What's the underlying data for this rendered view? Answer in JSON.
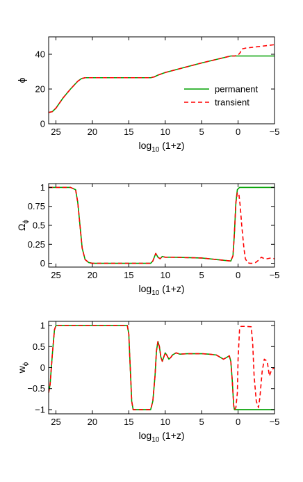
{
  "chart_data": [
    {
      "type": "line",
      "id": "phi",
      "xlabel": "log10 (1+z)",
      "ylabel": "ϕ",
      "xlim": [
        26,
        -5
      ],
      "ylim": [
        0,
        50
      ],
      "xticks": [
        25,
        20,
        15,
        10,
        5,
        0,
        -5
      ],
      "xtick_labels": [
        "25",
        "20",
        "15",
        "10",
        "5",
        "0",
        "−5"
      ],
      "yticks": [
        0,
        20,
        40
      ],
      "ytick_labels": [
        "0",
        "20",
        "40"
      ],
      "legend": {
        "position": "lower-right",
        "entries": [
          "permanent",
          "transient"
        ]
      },
      "series": [
        {
          "name": "permanent",
          "color": "#00a000",
          "dash": "solid",
          "x": [
            26,
            25.5,
            25,
            24,
            23,
            22,
            21.5,
            21,
            20,
            15,
            12,
            11.5,
            11,
            10,
            5,
            1,
            0.5,
            0,
            -1,
            -5
          ],
          "y": [
            6.5,
            7,
            9,
            15,
            20,
            24.5,
            26,
            26.5,
            26.5,
            26.5,
            26.5,
            27,
            28,
            29.5,
            35,
            39,
            39,
            39,
            39,
            39
          ]
        },
        {
          "name": "transient",
          "color": "#ff0000",
          "dash": "dashed",
          "x": [
            26,
            25.5,
            25,
            24,
            23,
            22,
            21.5,
            21,
            20,
            15,
            12,
            11.5,
            11,
            10,
            5,
            1,
            0.5,
            0,
            -0.3,
            -0.5,
            -1,
            -2,
            -3,
            -4,
            -5
          ],
          "y": [
            6.5,
            7,
            9,
            15,
            20,
            24.5,
            26,
            26.5,
            26.5,
            26.5,
            26.5,
            27,
            28,
            29.5,
            35,
            39,
            39,
            39.5,
            41,
            43,
            43.5,
            44,
            44.5,
            45,
            45.5
          ]
        }
      ]
    },
    {
      "type": "line",
      "id": "omega",
      "xlabel": "log10 (1+z)",
      "ylabel": "Ωϕ",
      "xlim": [
        26,
        -5
      ],
      "ylim": [
        -0.05,
        1.05
      ],
      "xticks": [
        25,
        20,
        15,
        10,
        5,
        0,
        -5
      ],
      "xtick_labels": [
        "25",
        "20",
        "15",
        "10",
        "5",
        "0",
        "−5"
      ],
      "yticks": [
        0,
        0.25,
        0.5,
        0.75,
        1
      ],
      "ytick_labels": [
        "0",
        "0.25",
        "0.5",
        "0.75",
        "1"
      ],
      "series": [
        {
          "name": "permanent",
          "color": "#00a000",
          "dash": "solid",
          "x": [
            26,
            23,
            22.3,
            22,
            21.7,
            21.4,
            21,
            20.5,
            20,
            15,
            12,
            11.7,
            11.3,
            11,
            10.7,
            10.4,
            10,
            9,
            5,
            1,
            0.7,
            0.5,
            0.3,
            0.1,
            -0.2,
            -0.5,
            -1,
            -5
          ],
          "y": [
            1,
            1,
            0.97,
            0.8,
            0.5,
            0.2,
            0.05,
            0.01,
            0,
            0,
            0,
            0.03,
            0.13,
            0.08,
            0.06,
            0.09,
            0.08,
            0.08,
            0.07,
            0.03,
            0.1,
            0.4,
            0.8,
            0.97,
            1,
            1,
            1,
            1
          ]
        },
        {
          "name": "transient",
          "color": "#ff0000",
          "dash": "dashed",
          "x": [
            26,
            23,
            22.3,
            22,
            21.7,
            21.4,
            21,
            20.5,
            20,
            15,
            12,
            11.7,
            11.3,
            11,
            10.7,
            10.4,
            10,
            9,
            5,
            1,
            0.7,
            0.5,
            0.3,
            0.1,
            -0.1,
            -0.3,
            -0.5,
            -0.8,
            -1,
            -1.3,
            -1.6,
            -2,
            -2.4,
            -2.8,
            -3.2,
            -3.6,
            -4,
            -4.5,
            -5
          ],
          "y": [
            1,
            1,
            0.97,
            0.8,
            0.5,
            0.2,
            0.05,
            0.01,
            0,
            0,
            0,
            0.03,
            0.13,
            0.08,
            0.06,
            0.09,
            0.08,
            0.08,
            0.07,
            0.03,
            0.1,
            0.4,
            0.8,
            0.93,
            0.92,
            0.75,
            0.5,
            0.2,
            0.06,
            0.01,
            0.0,
            0.0,
            0.01,
            0.04,
            0.08,
            0.06,
            0.06,
            0.07,
            0.06
          ]
        }
      ]
    },
    {
      "type": "line",
      "id": "w",
      "xlabel": "log10 (1+z)",
      "ylabel": "wϕ",
      "xlim": [
        26,
        -5
      ],
      "ylim": [
        -1.1,
        1.1
      ],
      "xticks": [
        25,
        20,
        15,
        10,
        5,
        0,
        -5
      ],
      "xtick_labels": [
        "25",
        "20",
        "15",
        "10",
        "5",
        "0",
        "−5"
      ],
      "yticks": [
        -1,
        -0.5,
        0,
        0.5,
        1
      ],
      "ytick_labels": [
        "−1",
        "−0.5",
        "0",
        "0.5",
        "1"
      ],
      "series": [
        {
          "name": "permanent",
          "color": "#00a000",
          "dash": "solid",
          "x": [
            26,
            25.8,
            25.5,
            25.2,
            25,
            24.5,
            20,
            15.2,
            15,
            14.8,
            14.6,
            14.4,
            14,
            13,
            12,
            11.7,
            11.4,
            11.2,
            11,
            10.8,
            10.6,
            10.4,
            10.2,
            10,
            9.8,
            9.5,
            9.2,
            9,
            8.5,
            8,
            7,
            6,
            5,
            4,
            3,
            2,
            1.5,
            1.2,
            1,
            0.8,
            0.6,
            0.5,
            0.2,
            0,
            -5
          ],
          "y": [
            -0.6,
            -0.4,
            0.3,
            0.9,
            1,
            1,
            1,
            1,
            0.8,
            0,
            -0.8,
            -1,
            -1,
            -1,
            -1,
            -0.8,
            -0.2,
            0.4,
            0.62,
            0.5,
            0.25,
            0.15,
            0.25,
            0.35,
            0.3,
            0.2,
            0.25,
            0.3,
            0.35,
            0.32,
            0.33,
            0.33,
            0.33,
            0.32,
            0.3,
            0.2,
            0.25,
            0.28,
            0.15,
            -0.3,
            -0.9,
            -1,
            -1,
            -1,
            -1
          ]
        },
        {
          "name": "transient",
          "color": "#ff0000",
          "dash": "dashed",
          "x": [
            26,
            25.8,
            25.5,
            25.2,
            25,
            24.5,
            20,
            15.2,
            15,
            14.8,
            14.6,
            14.4,
            14,
            13,
            12,
            11.7,
            11.4,
            11.2,
            11,
            10.8,
            10.6,
            10.4,
            10.2,
            10,
            9.8,
            9.5,
            9.2,
            9,
            8.5,
            8,
            7,
            6,
            5,
            4,
            3,
            2,
            1.5,
            1.2,
            1,
            0.8,
            0.6,
            0.5,
            0.3,
            0.1,
            0,
            -0.2,
            -0.4,
            -1,
            -1.8,
            -2,
            -2.2,
            -2.5,
            -2.8,
            -3,
            -3.3,
            -3.6,
            -4,
            -4.3,
            -4.6,
            -5
          ],
          "y": [
            -0.6,
            -0.4,
            0.3,
            0.9,
            1,
            1,
            1,
            1,
            0.8,
            0,
            -0.8,
            -1,
            -1,
            -1,
            -1,
            -0.8,
            -0.2,
            0.4,
            0.62,
            0.5,
            0.25,
            0.15,
            0.25,
            0.35,
            0.3,
            0.2,
            0.25,
            0.3,
            0.35,
            0.32,
            0.33,
            0.33,
            0.33,
            0.32,
            0.3,
            0.2,
            0.25,
            0.28,
            0.15,
            -0.3,
            -0.9,
            -1,
            -0.95,
            -0.6,
            0.2,
            0.9,
            0.98,
            0.98,
            0.97,
            0.6,
            -0.2,
            -0.8,
            -0.95,
            -0.7,
            -0.1,
            0.2,
            0.15,
            -0.2,
            -0.05,
            0.0
          ]
        }
      ]
    }
  ]
}
